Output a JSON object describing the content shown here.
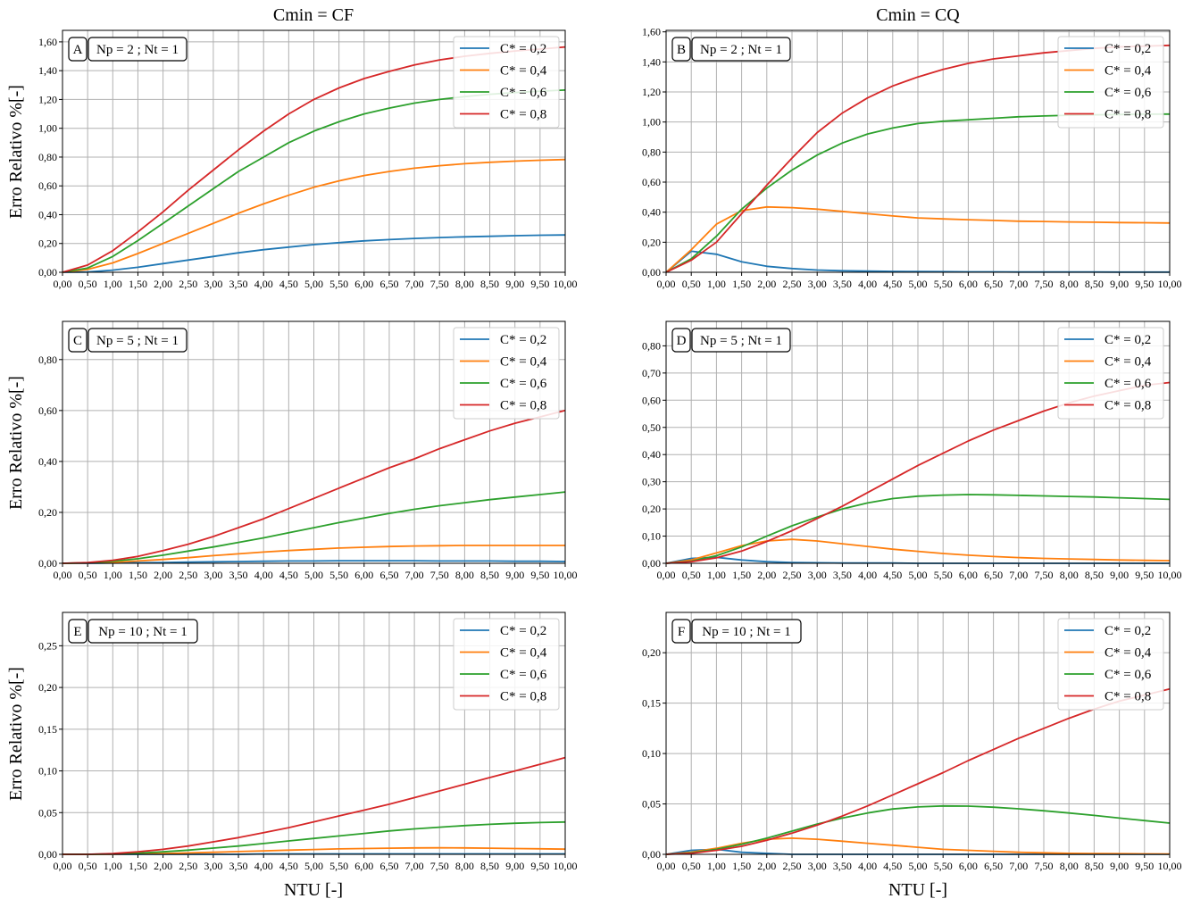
{
  "figure": {
    "col_titles": [
      "Cmin = CF",
      "Cmin = CQ"
    ],
    "ylabel": "Erro Relativo %[-]",
    "xlabel": "NTU [-]",
    "colors": {
      "C* = 0,2": "#1f77b4",
      "C* = 0,4": "#ff7f0e",
      "C* = 0,6": "#2ca02c",
      "C* = 0,8": "#d62728"
    }
  },
  "chart_data": [
    {
      "type": "line",
      "panel": "A",
      "annotation": "Np = 2 ; Nt = 1",
      "xlim": [
        0,
        10
      ],
      "ylim": [
        0,
        1.68
      ],
      "yticks": [
        "0,00",
        "0,20",
        "0,40",
        "0,60",
        "0,80",
        "1,00",
        "1,20",
        "1,40",
        "1,60"
      ],
      "ytick_values": [
        0,
        0.2,
        0.4,
        0.6,
        0.8,
        1.0,
        1.2,
        1.4,
        1.6
      ],
      "grid": true,
      "legend": "top-right",
      "x": [
        0,
        0.5,
        1,
        1.5,
        2,
        2.5,
        3,
        3.5,
        4,
        4.5,
        5,
        5.5,
        6,
        6.5,
        7,
        7.5,
        8,
        8.5,
        9,
        9.5,
        10
      ],
      "series": [
        {
          "name": "C* = 0,2",
          "values": [
            0,
            0.002,
            0.015,
            0.035,
            0.06,
            0.085,
            0.11,
            0.135,
            0.157,
            0.175,
            0.192,
            0.206,
            0.218,
            0.227,
            0.235,
            0.241,
            0.246,
            0.25,
            0.254,
            0.257,
            0.259
          ]
        },
        {
          "name": "C* = 0,4",
          "values": [
            0,
            0.02,
            0.065,
            0.13,
            0.2,
            0.27,
            0.34,
            0.41,
            0.475,
            0.535,
            0.59,
            0.635,
            0.672,
            0.7,
            0.723,
            0.74,
            0.754,
            0.764,
            0.772,
            0.778,
            0.783
          ]
        },
        {
          "name": "C* = 0,6",
          "values": [
            0,
            0.03,
            0.11,
            0.22,
            0.34,
            0.46,
            0.58,
            0.7,
            0.8,
            0.9,
            0.98,
            1.045,
            1.1,
            1.14,
            1.175,
            1.2,
            1.22,
            1.236,
            1.248,
            1.258,
            1.265
          ]
        },
        {
          "name": "C* = 0,8",
          "values": [
            0,
            0.05,
            0.15,
            0.28,
            0.42,
            0.57,
            0.71,
            0.85,
            0.98,
            1.1,
            1.2,
            1.28,
            1.345,
            1.395,
            1.44,
            1.475,
            1.5,
            1.52,
            1.537,
            1.55,
            1.565
          ]
        }
      ]
    },
    {
      "type": "line",
      "panel": "B",
      "annotation": "Np = 2 ; Nt = 1",
      "xlim": [
        0,
        10
      ],
      "ylim": [
        0,
        1.61
      ],
      "yticks": [
        "0,00",
        "0,20",
        "0,40",
        "0,60",
        "0,80",
        "1,00",
        "1,20",
        "1,40",
        "1,60"
      ],
      "ytick_values": [
        0,
        0.2,
        0.4,
        0.6,
        0.8,
        1.0,
        1.2,
        1.4,
        1.6
      ],
      "grid": true,
      "legend": "top-right",
      "x": [
        0,
        0.5,
        1,
        1.5,
        2,
        2.5,
        3,
        3.5,
        4,
        4.5,
        5,
        5.5,
        6,
        6.5,
        7,
        7.5,
        8,
        8.5,
        9,
        9.5,
        10
      ],
      "series": [
        {
          "name": "C* = 0,2",
          "values": [
            0,
            0.14,
            0.12,
            0.07,
            0.04,
            0.025,
            0.015,
            0.01,
            0.008,
            0.006,
            0.005,
            0.004,
            0.003,
            0.003,
            0.002,
            0.002,
            0.002,
            0.002,
            0.001,
            0.001,
            0.001
          ]
        },
        {
          "name": "C* = 0,4",
          "values": [
            0,
            0.15,
            0.32,
            0.41,
            0.435,
            0.43,
            0.42,
            0.405,
            0.39,
            0.375,
            0.362,
            0.355,
            0.35,
            0.345,
            0.34,
            0.338,
            0.335,
            0.333,
            0.331,
            0.33,
            0.328
          ]
        },
        {
          "name": "C* = 0,6",
          "values": [
            0,
            0.09,
            0.24,
            0.42,
            0.56,
            0.68,
            0.78,
            0.86,
            0.92,
            0.96,
            0.99,
            1.005,
            1.015,
            1.025,
            1.035,
            1.04,
            1.045,
            1.048,
            1.05,
            1.052,
            1.053
          ]
        },
        {
          "name": "C* = 0,8",
          "values": [
            0,
            0.08,
            0.2,
            0.39,
            0.58,
            0.76,
            0.93,
            1.06,
            1.16,
            1.24,
            1.3,
            1.35,
            1.39,
            1.42,
            1.44,
            1.46,
            1.475,
            1.49,
            1.5,
            1.505,
            1.51
          ]
        }
      ]
    },
    {
      "type": "line",
      "panel": "C",
      "annotation": "Np = 5 ; Nt = 1",
      "xlim": [
        0,
        10
      ],
      "ylim": [
        0,
        0.95
      ],
      "yticks": [
        "0,00",
        "0,20",
        "0,40",
        "0,60",
        "0,80"
      ],
      "ytick_values": [
        0,
        0.2,
        0.4,
        0.6,
        0.8
      ],
      "grid": true,
      "legend": "top-right",
      "x": [
        0,
        0.5,
        1,
        1.5,
        2,
        2.5,
        3,
        3.5,
        4,
        4.5,
        5,
        5.5,
        6,
        6.5,
        7,
        7.5,
        8,
        8.5,
        9,
        9.5,
        10
      ],
      "series": [
        {
          "name": "C* = 0,2",
          "values": [
            0,
            0,
            0.001,
            0.002,
            0.003,
            0.005,
            0.006,
            0.007,
            0.008,
            0.009,
            0.009,
            0.01,
            0.01,
            0.01,
            0.01,
            0.009,
            0.009,
            0.009,
            0.008,
            0.008,
            0.007
          ]
        },
        {
          "name": "C* = 0,4",
          "values": [
            0,
            0.001,
            0.004,
            0.009,
            0.015,
            0.022,
            0.03,
            0.037,
            0.044,
            0.05,
            0.055,
            0.06,
            0.063,
            0.066,
            0.068,
            0.069,
            0.07,
            0.07,
            0.07,
            0.07,
            0.07
          ]
        },
        {
          "name": "C* = 0,6",
          "values": [
            0,
            0.002,
            0.008,
            0.018,
            0.032,
            0.048,
            0.064,
            0.082,
            0.1,
            0.12,
            0.14,
            0.16,
            0.178,
            0.196,
            0.212,
            0.226,
            0.238,
            0.25,
            0.26,
            0.27,
            0.28
          ]
        },
        {
          "name": "C* = 0,8",
          "values": [
            0,
            0.003,
            0.012,
            0.027,
            0.05,
            0.075,
            0.105,
            0.14,
            0.175,
            0.215,
            0.255,
            0.295,
            0.335,
            0.375,
            0.41,
            0.45,
            0.485,
            0.52,
            0.55,
            0.575,
            0.6
          ]
        }
      ]
    },
    {
      "type": "line",
      "panel": "D",
      "annotation": "Np = 5 ; Nt = 1",
      "xlim": [
        0,
        10
      ],
      "ylim": [
        0,
        0.89
      ],
      "yticks": [
        "0,00",
        "0,10",
        "0,20",
        "0,30",
        "0,40",
        "0,50",
        "0,60",
        "0,70",
        "0,80"
      ],
      "ytick_values": [
        0,
        0.1,
        0.2,
        0.3,
        0.4,
        0.5,
        0.6,
        0.7,
        0.8
      ],
      "grid": true,
      "legend": "top-right",
      "x": [
        0,
        0.5,
        1,
        1.5,
        2,
        2.5,
        3,
        3.5,
        4,
        4.5,
        5,
        5.5,
        6,
        6.5,
        7,
        7.5,
        8,
        8.5,
        9,
        9.5,
        10
      ],
      "series": [
        {
          "name": "C* = 0,2",
          "values": [
            0,
            0.018,
            0.022,
            0.012,
            0.006,
            0.003,
            0.002,
            0.001,
            0.001,
            0.001,
            0,
            0,
            0,
            0,
            0,
            0,
            0,
            0,
            0,
            0,
            0
          ]
        },
        {
          "name": "C* = 0,4",
          "values": [
            0,
            0.012,
            0.038,
            0.065,
            0.082,
            0.088,
            0.082,
            0.072,
            0.062,
            0.052,
            0.044,
            0.036,
            0.03,
            0.025,
            0.021,
            0.018,
            0.016,
            0.014,
            0.012,
            0.011,
            0.01
          ]
        },
        {
          "name": "C* = 0,6",
          "values": [
            0,
            0.008,
            0.028,
            0.06,
            0.1,
            0.138,
            0.17,
            0.2,
            0.222,
            0.238,
            0.247,
            0.251,
            0.253,
            0.252,
            0.25,
            0.248,
            0.246,
            0.244,
            0.241,
            0.238,
            0.235
          ]
        },
        {
          "name": "C* = 0,8",
          "values": [
            0,
            0.006,
            0.02,
            0.045,
            0.08,
            0.12,
            0.165,
            0.21,
            0.26,
            0.31,
            0.36,
            0.405,
            0.45,
            0.49,
            0.525,
            0.56,
            0.59,
            0.615,
            0.635,
            0.655,
            0.665
          ]
        }
      ]
    },
    {
      "type": "line",
      "panel": "E",
      "annotation": "Np = 10 ; Nt = 1",
      "xlim": [
        0,
        10
      ],
      "ylim": [
        0,
        0.29
      ],
      "yticks": [
        "0,00",
        "0,05",
        "0,10",
        "0,15",
        "0,20",
        "0,25"
      ],
      "ytick_values": [
        0,
        0.05,
        0.1,
        0.15,
        0.2,
        0.25
      ],
      "grid": true,
      "legend": "top-right",
      "x": [
        0,
        0.5,
        1,
        1.5,
        2,
        2.5,
        3,
        3.5,
        4,
        4.5,
        5,
        5.5,
        6,
        6.5,
        7,
        7.5,
        8,
        8.5,
        9,
        9.5,
        10
      ],
      "series": [
        {
          "name": "C* = 0,2",
          "values": [
            0,
            0,
            0,
            0,
            0,
            0,
            0,
            0,
            0.0005,
            0.0005,
            0.0005,
            0.0005,
            0.0005,
            0.0005,
            0.0005,
            0.0005,
            0.0005,
            0.0005,
            0.0005,
            0.0005,
            0.0005
          ]
        },
        {
          "name": "C* = 0,4",
          "values": [
            0,
            0,
            0.0002,
            0.0005,
            0.001,
            0.0017,
            0.0025,
            0.0033,
            0.0042,
            0.005,
            0.0058,
            0.0065,
            0.007,
            0.0074,
            0.0077,
            0.0078,
            0.0077,
            0.0074,
            0.007,
            0.0066,
            0.0062
          ]
        },
        {
          "name": "C* = 0,6",
          "values": [
            0,
            0,
            0.0005,
            0.0015,
            0.003,
            0.005,
            0.0075,
            0.01,
            0.013,
            0.016,
            0.019,
            0.022,
            0.025,
            0.028,
            0.0305,
            0.0325,
            0.0345,
            0.036,
            0.0372,
            0.0381,
            0.0387
          ]
        },
        {
          "name": "C* = 0,8",
          "values": [
            0,
            0,
            0.001,
            0.003,
            0.006,
            0.01,
            0.015,
            0.02,
            0.026,
            0.032,
            0.039,
            0.046,
            0.053,
            0.06,
            0.068,
            0.076,
            0.084,
            0.092,
            0.1,
            0.108,
            0.116
          ]
        }
      ]
    },
    {
      "type": "line",
      "panel": "F",
      "annotation": "Np = 10 ; Nt = 1",
      "xlim": [
        0,
        10
      ],
      "ylim": [
        0,
        0.24
      ],
      "yticks": [
        "0,00",
        "0,05",
        "0,10",
        "0,15",
        "0,20"
      ],
      "ytick_values": [
        0,
        0.05,
        0.1,
        0.15,
        0.2
      ],
      "grid": true,
      "legend": "top-right",
      "x": [
        0,
        0.5,
        1,
        1.5,
        2,
        2.5,
        3,
        3.5,
        4,
        4.5,
        5,
        5.5,
        6,
        6.5,
        7,
        7.5,
        8,
        8.5,
        9,
        9.5,
        10
      ],
      "series": [
        {
          "name": "C* = 0,2",
          "values": [
            0,
            0.004,
            0.005,
            0.002,
            0.001,
            0,
            0,
            0,
            0,
            0,
            0,
            0,
            0,
            0,
            0,
            0,
            0,
            0,
            0,
            0,
            0
          ]
        },
        {
          "name": "C* = 0,4",
          "values": [
            0,
            0.002,
            0.006,
            0.011,
            0.015,
            0.016,
            0.015,
            0.013,
            0.011,
            0.009,
            0.007,
            0.005,
            0.004,
            0.003,
            0.002,
            0.0015,
            0.001,
            0.0008,
            0.0006,
            0.0004,
            0.0003
          ]
        },
        {
          "name": "C* = 0,6",
          "values": [
            0,
            0.0015,
            0.005,
            0.01,
            0.016,
            0.023,
            0.03,
            0.036,
            0.041,
            0.045,
            0.047,
            0.048,
            0.0478,
            0.0468,
            0.0452,
            0.0432,
            0.041,
            0.0386,
            0.036,
            0.0335,
            0.031
          ]
        },
        {
          "name": "C* = 0,8",
          "values": [
            0,
            0.001,
            0.004,
            0.008,
            0.014,
            0.021,
            0.029,
            0.038,
            0.048,
            0.059,
            0.07,
            0.081,
            0.093,
            0.104,
            0.115,
            0.125,
            0.135,
            0.144,
            0.152,
            0.158,
            0.164
          ]
        }
      ]
    }
  ]
}
